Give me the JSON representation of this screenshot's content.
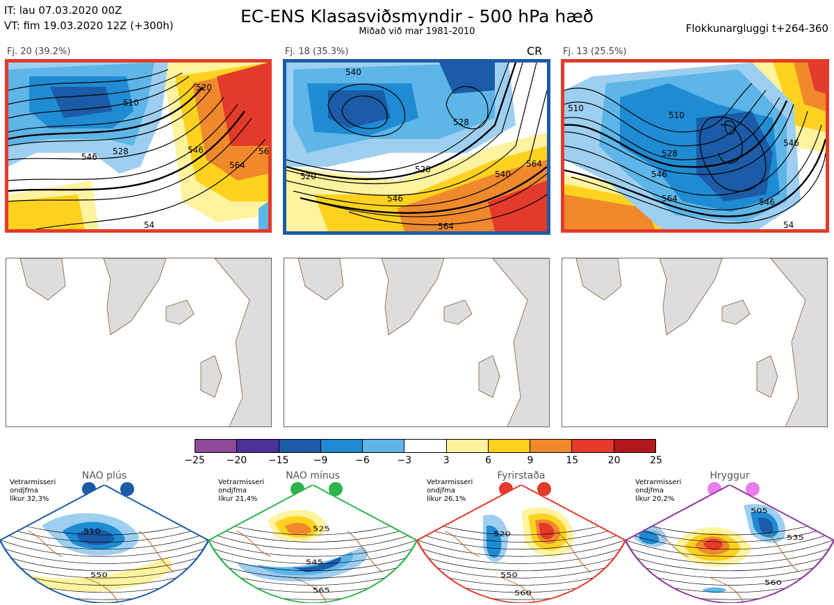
{
  "header": {
    "it_line": "IT: lau 07.03.2020 00Z",
    "vt_line": "VT: fim 19.03.2020 12Z  (+300h)",
    "title": "EC-ENS Klasasviðsmyndir - 500 hPa hæð",
    "subtitle": "Miðað við mar 1981-2010",
    "window": "Flokkunargluggi t+264-360"
  },
  "clusters": [
    {
      "label": "Fj. 20 (39.2%)",
      "frame_color": "#e43a2b",
      "tag": "",
      "contours": [
        "510",
        "520",
        "528",
        "546",
        "546",
        "564",
        "56",
        "54"
      ]
    },
    {
      "label": "Fj. 18 (35.3%)",
      "frame_color": "#1d5aa8",
      "tag": "CR",
      "contours": [
        "540",
        "528",
        "520",
        "528",
        "546",
        "540",
        "564",
        "564"
      ]
    },
    {
      "label": "Fj. 13 (25.5%)",
      "frame_color": "#e43a2b",
      "tag": "",
      "contours": [
        "510",
        "510",
        "528",
        "546",
        "546",
        "564",
        "54",
        "546"
      ]
    }
  ],
  "colorbar": {
    "ticks": [
      "−25",
      "−20",
      "−15",
      "−9",
      "−6",
      "−3",
      "3",
      "6",
      "9",
      "15",
      "20",
      "25"
    ],
    "colors": [
      "#8d4b9a",
      "#4b3196",
      "#1b5ba7",
      "#1f8bd3",
      "#5db5e8",
      "#9ecff0",
      "#ffffff",
      "#fff3a0",
      "#ffd21f",
      "#f0892b",
      "#e43a2b",
      "#b2171b"
    ]
  },
  "regimes": [
    {
      "name": "NAO plús",
      "note": [
        "Vetrarmisseri",
        "ondjfma",
        "líkur 32,3%"
      ],
      "dot_color": "#1b5ba7",
      "frame_color": "#1b5ba7",
      "contours": [
        "510",
        "550"
      ]
    },
    {
      "name": "NAO mínus",
      "note": [
        "Vetrarmisseri",
        "ondjfma",
        "líkur 21,4%"
      ],
      "dot_color": "#2db34a",
      "frame_color": "#2db34a",
      "contours": [
        "525",
        "545",
        "565"
      ]
    },
    {
      "name": "Fyrirstaða",
      "note": [
        "Vetrarmisseri",
        "ondjfma",
        "líkur 26,1%"
      ],
      "dot_color": "#e43a2b",
      "frame_color": "#e43a2b",
      "contours": [
        "520",
        "550",
        "560"
      ]
    },
    {
      "name": "Hryggur",
      "note": [
        "Vetrarmisseri",
        "ondjfma",
        "líkur 20,2%"
      ],
      "dot_color": "#e97de9",
      "frame_color": "#8e3a9a",
      "contours": [
        "505",
        "535",
        "560"
      ]
    }
  ]
}
